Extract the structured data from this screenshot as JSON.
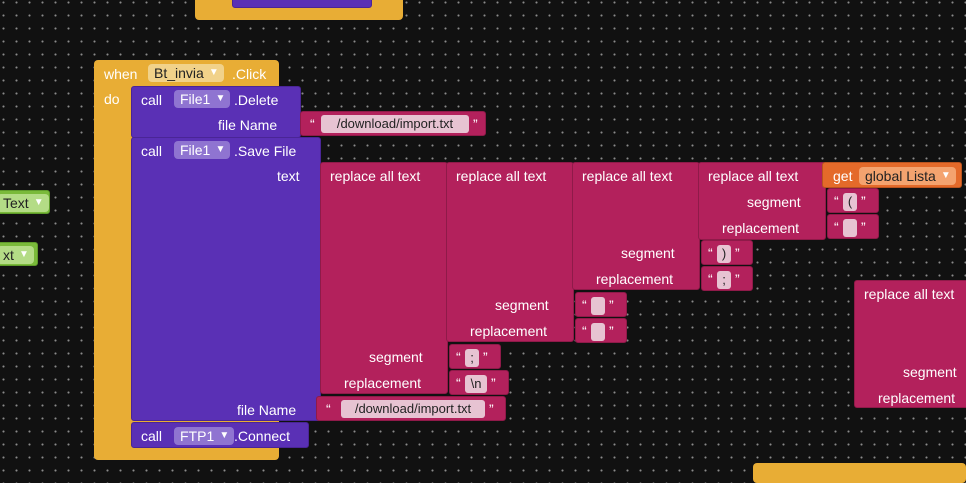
{
  "event": {
    "when": "when",
    "component": "Bt_invia",
    "event_name": ".Click",
    "do": "do"
  },
  "delete_call": {
    "call": "call",
    "component": "File1",
    "method": ".Delete",
    "arg_label": "file Name",
    "arg_value": "/download/import.txt"
  },
  "save_call": {
    "call": "call",
    "component": "File1",
    "method": ".Save File",
    "text_label": "text",
    "filename_label": "file Name",
    "filename_value": "/download/import.txt"
  },
  "replace": {
    "label": "replace all text",
    "segment_label": "segment",
    "replacement_label": "replacement",
    "inner_segment": "(",
    "inner_replacement": "",
    "l3_segment": ")",
    "l3_replacement": ";",
    "l2_segment": "",
    "l2_replacement": "",
    "l1_segment": ";",
    "l1_replacement": "\\n"
  },
  "get_var": {
    "get": "get",
    "name": "global Lista"
  },
  "connect_call": {
    "call": "call",
    "component": "FTP1",
    "method": ".Connect"
  },
  "side_dropdowns": [
    "Text",
    "xt"
  ],
  "right_block": {
    "label": "replace all text",
    "segment_label": "segment",
    "replacement_label": "replacement"
  },
  "quote_open": "“",
  "quote_close": "”"
}
